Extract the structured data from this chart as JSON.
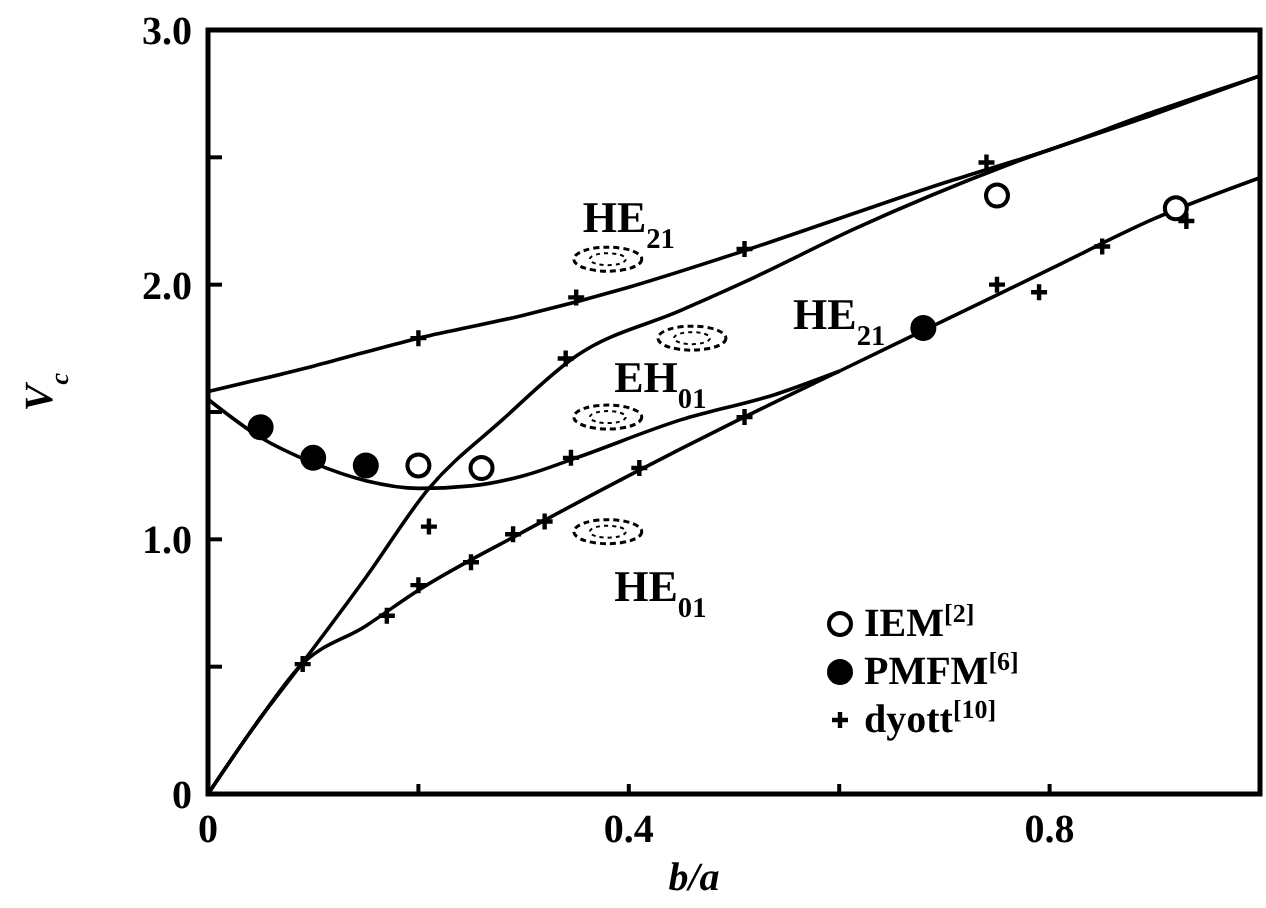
{
  "chart_data": {
    "type": "line",
    "xlabel": "b/a",
    "ylabel": "V$_{c}$",
    "xlim": [
      0,
      1.0
    ],
    "ylim": [
      0,
      3.0
    ],
    "xticks": [
      {
        "value": 0,
        "label": "0"
      },
      {
        "value": 0.2,
        "label": null
      },
      {
        "value": 0.4,
        "label": "0.4"
      },
      {
        "value": 0.6,
        "label": null
      },
      {
        "value": 0.8,
        "label": "0.8"
      }
    ],
    "yticks": [
      {
        "value": 0,
        "label": "0"
      },
      {
        "value": 0.5,
        "label": null
      },
      {
        "value": 1.0,
        "label": "1.0"
      },
      {
        "value": 1.5,
        "label": null
      },
      {
        "value": 2.0,
        "label": "2.0"
      },
      {
        "value": 2.5,
        "label": null
      },
      {
        "value": 3.0,
        "label": "3.0"
      }
    ],
    "grid": false,
    "legend": "bottom right",
    "marker": "none",
    "line_style": "solid",
    "series": [
      {
        "color": "#000000",
        "x": [
          0,
          0.1,
          0.2,
          0.3,
          0.4,
          0.5,
          0.6,
          0.7,
          0.8,
          0.9,
          1.0
        ],
        "values": [
          1.58,
          1.68,
          1.79,
          1.88,
          1.99,
          2.12,
          2.26,
          2.4,
          2.53,
          2.68,
          2.82
        ]
      },
      {
        "color": "#000000",
        "x": [
          0,
          0.05,
          0.1,
          0.15,
          0.2,
          0.25,
          0.3,
          0.35,
          0.45,
          0.54,
          0.6
        ],
        "values": [
          1.55,
          1.4,
          1.3,
          1.23,
          1.2,
          1.21,
          1.25,
          1.32,
          1.47,
          1.57,
          1.66
        ]
      },
      {
        "color": "#000000",
        "x": [
          0,
          0.05,
          0.087,
          0.15,
          0.21,
          0.28,
          0.35,
          0.45,
          0.52,
          0.615,
          0.76,
          0.9,
          1.0
        ],
        "values": [
          0,
          0.3,
          0.5,
          0.85,
          1.2,
          1.47,
          1.72,
          1.9,
          2.03,
          2.22,
          2.47,
          2.67,
          2.82
        ]
      },
      {
        "color": "#000000",
        "x": [
          0,
          0.05,
          0.087,
          0.15,
          0.2,
          0.3,
          0.4,
          0.5,
          0.6,
          0.7,
          0.8,
          0.9,
          1.0
        ],
        "values": [
          0,
          0.3,
          0.5,
          0.66,
          0.8,
          1.03,
          1.25,
          1.46,
          1.66,
          1.86,
          2.06,
          2.26,
          2.42
        ]
      },
      {
        "type": "scatter",
        "name": "IEM$^{[2]}$",
        "marker": "circle",
        "color": "#ffffff",
        "x": [
          0.2,
          0.26,
          0.75,
          0.92
        ],
        "values": [
          1.29,
          1.28,
          2.35,
          2.3
        ]
      },
      {
        "type": "scatter",
        "name": "PMFM$^{[6]}$",
        "marker": "circle",
        "color": "#000000",
        "x": [
          0.05,
          0.1,
          0.15,
          0.68
        ],
        "values": [
          1.44,
          1.32,
          1.29,
          1.83
        ]
      },
      {
        "type": "scatter",
        "name": "dyott$^{[10]}$",
        "marker": "cross",
        "color": "#000000",
        "x": [
          0.2,
          0.35,
          0.51,
          0.74,
          0.09,
          0.21,
          0.34,
          0.17,
          0.2,
          0.25,
          0.29,
          0.32,
          0.41,
          0.51,
          0.75,
          0.79,
          0.85,
          0.345,
          0.93
        ],
        "values": [
          1.79,
          1.95,
          2.14,
          2.48,
          0.51,
          1.05,
          1.71,
          0.7,
          0.82,
          0.91,
          1.02,
          1.07,
          1.28,
          1.48,
          2.0,
          1.97,
          2.15,
          1.32,
          2.25
        ]
      }
    ],
    "annotations": [
      "HE$_{21}$",
      "HE$_{21}$",
      "EH$_{01}$",
      "HE$_{01}$"
    ]
  }
}
